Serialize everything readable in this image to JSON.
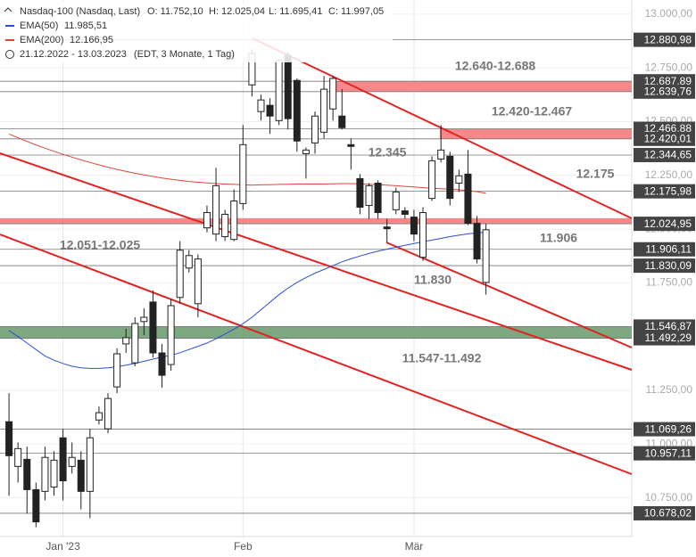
{
  "chart_data": {
    "type": "candlestick",
    "info": {
      "name": "Nasdaq-100 (Nasdaq, Last)",
      "open": "O: 11.752,10",
      "high": "H: 12.025,04",
      "low": "L: 11.695,41",
      "close": "C: 11.997,05",
      "range": "21.12.2022 - 13.03.2023",
      "settings": "(EDT, 3 Monate, 1 Tag)"
    },
    "categories": [
      null,
      null,
      null,
      null,
      null,
      null,
      "Jan '23",
      null,
      null,
      null,
      null,
      null,
      null,
      null,
      null,
      null,
      null,
      null,
      null,
      null,
      null,
      null,
      null,
      null,
      null,
      null,
      "Feb",
      null,
      null,
      null,
      null,
      null,
      null,
      null,
      null,
      null,
      null,
      null,
      null,
      null,
      null,
      null,
      null,
      null,
      null,
      "Mär",
      null,
      null,
      null,
      null,
      null,
      null,
      null,
      null
    ],
    "open": [
      11104,
      10896,
      10929,
      10788,
      10780,
      10800,
      11029,
      10896,
      10925,
      10780,
      11112,
      11071,
      11266,
      11466,
      11378,
      11570,
      11661,
      11424,
      11370,
      11682,
      11819,
      11653,
      12006,
      11977,
      11965,
      11952,
      12119,
      12671,
      12547,
      12576,
      12505,
      12809,
      12692,
      12351,
      12401,
      12451,
      12559,
      12526,
      12393,
      12235,
      12110,
      12214,
      12010,
      12090,
      12085,
      12056,
      11869,
      12143,
      12326,
      12339,
      12214,
      12256,
      12027,
      11752.1
    ],
    "high": [
      11237,
      11008,
      10988,
      10821,
      10988,
      10967,
      11071,
      11008,
      10967,
      11071,
      11175,
      11237,
      11445,
      11536,
      11590,
      11632,
      11715,
      11466,
      11674,
      11944,
      11902,
      11882,
      12110,
      12285,
      12090,
      12185,
      12484,
      12838,
      12626,
      12609,
      12792,
      12825,
      12701,
      12380,
      12547,
      12713,
      12713,
      12651,
      12422,
      12256,
      12214,
      12227,
      12048,
      12193,
      12102,
      12090,
      12102,
      12339,
      12484,
      12360,
      12277,
      12368,
      12061,
      12025.04
    ],
    "low": [
      10759,
      10821,
      10676,
      10613,
      10738,
      10759,
      10738,
      10863,
      10696,
      10655,
      11091,
      11050,
      11237,
      11424,
      11362,
      11507,
      11403,
      11262,
      11341,
      11653,
      11798,
      11590,
      11985,
      11944,
      11944,
      11944,
      12090,
      12617,
      12505,
      12443,
      12484,
      12464,
      12360,
      12235,
      12351,
      12422,
      12505,
      12464,
      12277,
      12069,
      12048,
      12048,
      11936,
      12069,
      12048,
      11944,
      11852,
      12131,
      12310,
      12110,
      12173,
      12019,
      11840,
      11695.41
    ],
    "close": [
      10946,
      10979,
      10788,
      10638,
      10938,
      10925,
      10829,
      10938,
      10780,
      11029,
      11146,
      11212,
      11420,
      11495,
      11561,
      11590,
      11424,
      11320,
      11644,
      11902,
      11877,
      11861,
      12077,
      12202,
      12069,
      12131,
      12393,
      12817,
      12601,
      12526,
      12784,
      12514,
      12410,
      12368,
      12526,
      12651,
      12701,
      12472,
      12385,
      12102,
      12202,
      12077,
      12002,
      12173,
      12069,
      11977,
      12077,
      12318,
      12368,
      12143,
      12248,
      12027,
      11861,
      11997.05
    ],
    "up_color": "#ffffff",
    "down_color": "#222222",
    "series": [
      {
        "name": "EMA(50)",
        "color": "#2a4fd6",
        "value_label": "11.985,51",
        "values": [
          11528,
          11500,
          11470,
          11440,
          11410,
          11390,
          11375,
          11362,
          11355,
          11352,
          11352,
          11355,
          11360,
          11367,
          11375,
          11385,
          11395,
          11405,
          11413,
          11425,
          11440,
          11455,
          11470,
          11490,
          11512,
          11535,
          11560,
          11590,
          11625,
          11660,
          11695,
          11725,
          11752,
          11775,
          11795,
          11812,
          11830,
          11848,
          11862,
          11875,
          11887,
          11897,
          11907,
          11916,
          11925,
          11933,
          11941,
          11949,
          11957,
          11965,
          11972,
          11978,
          11983,
          11985.51
        ]
      },
      {
        "name": "EMA(200)",
        "color": "#e0443c",
        "value_label": "12.166,95",
        "values": [
          12443,
          12425,
          12408,
          12392,
          12377,
          12362,
          12348,
          12335,
          12322,
          12310,
          12299,
          12288,
          12278,
          12269,
          12260,
          12252,
          12245,
          12238,
          12232,
          12227,
          12222,
          12218,
          12215,
          12212,
          12210,
          12208,
          12206,
          12205,
          12206,
          12207,
          12208,
          12209,
          12210,
          12210,
          12210,
          12210,
          12211,
          12212,
          12212,
          12211,
          12209,
          12207,
          12205,
          12202,
          12199,
          12196,
          12193,
          12190,
          12188,
          12186,
          12183,
          12179,
          12174,
          12166.95
        ]
      }
    ],
    "xlim": [
      -1,
      69.2
    ],
    "ylim": [
      10570,
      13066
    ],
    "yticks": [
      {
        "value": 10750,
        "label": "10.750,00"
      },
      {
        "value": 11000,
        "label": "11.000,00"
      },
      {
        "value": 11250,
        "label": "11.250,00"
      },
      {
        "value": 11500,
        "label": "11.500,00"
      },
      {
        "value": 11750,
        "label": "11.750,00"
      },
      {
        "value": 12000,
        "label": "12.000,00"
      },
      {
        "value": 12250,
        "label": "12.250,00"
      },
      {
        "value": 12500,
        "label": "12.500,00"
      },
      {
        "value": 12750,
        "label": "12.750,00"
      },
      {
        "value": 13000,
        "label": "13.000,00"
      }
    ],
    "levels": [
      {
        "value": 12880.98,
        "label": "12.880,98"
      },
      {
        "value": 12687.89,
        "label": "12.687,89"
      },
      {
        "value": 12639.76,
        "label": "12.639,76"
      },
      {
        "value": 12466.88,
        "label": "12.466,88"
      },
      {
        "value": 12420.01,
        "label": "12.420,01"
      },
      {
        "value": 12344.65,
        "label": "12.344,65"
      },
      {
        "value": 12175.98,
        "label": "12.175,98"
      },
      {
        "value": 12024.95,
        "label": "12.024,95"
      },
      {
        "value": 11906.11,
        "label": "11.906,11"
      },
      {
        "value": 11830.09,
        "label": "11.830,09"
      },
      {
        "value": 11546.87,
        "label": "11.546,87"
      },
      {
        "value": 11492.29,
        "label": "11.492,29"
      },
      {
        "value": 11069.26,
        "label": "11.069,26"
      },
      {
        "value": 10957.11,
        "label": "10.957,11"
      },
      {
        "value": 10678.02,
        "label": "10.678,02"
      }
    ],
    "zones": [
      {
        "label": "12.640-12.688",
        "low": 12640,
        "high": 12688,
        "color": "#f47c7c"
      },
      {
        "label": "12.420-12.467",
        "low": 12420,
        "high": 12467,
        "color": "#f47c7c"
      },
      {
        "label": "12.051-12.025",
        "low": 12025,
        "high": 12051,
        "color": "#f47c7c"
      },
      {
        "label": "11.547-11.492",
        "low": 11492.29,
        "high": 11546.87,
        "color": "#6f9f72"
      }
    ],
    "annotations": [
      "12.345",
      "12.175",
      "11.906",
      "11.830"
    ]
  }
}
